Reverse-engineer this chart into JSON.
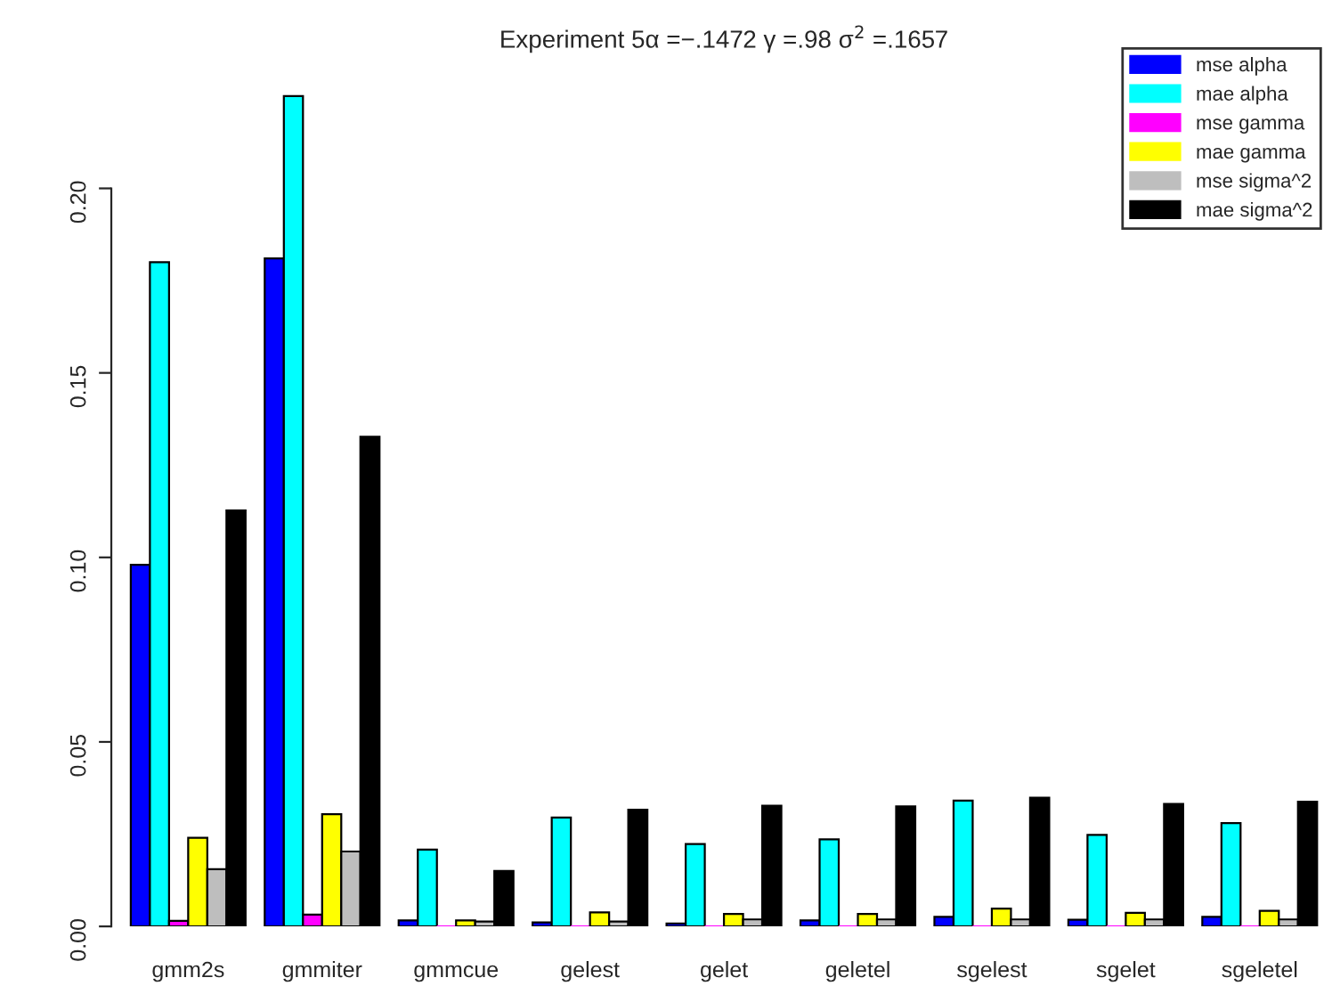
{
  "chart_data": {
    "type": "bar",
    "title": "Experiment 5α =−.1472 γ =.98 σ$^{2}$ =.1657",
    "categories": [
      "gmm2s",
      "gmmiter",
      "gmmcue",
      "gelest",
      "gelet",
      "geletel",
      "sgelest",
      "sgelet",
      "sgeletel"
    ],
    "series": [
      {
        "name": "mse alpha",
        "color": "#0000ff",
        "values": [
          0.098,
          0.181,
          0.0016,
          0.0011,
          0.0008,
          0.0016,
          0.0026,
          0.0018,
          0.0026
        ]
      },
      {
        "name": "mae alpha",
        "color": "#00ffff",
        "values": [
          0.18,
          0.225,
          0.0208,
          0.0295,
          0.0223,
          0.0236,
          0.0341,
          0.0248,
          0.028
        ]
      },
      {
        "name": "mse gamma",
        "color": "#ff00ff",
        "values": [
          0.0015,
          0.0032,
          0,
          0,
          0,
          0,
          0,
          0,
          0
        ]
      },
      {
        "name": "mae gamma",
        "color": "#ffff00",
        "values": [
          0.024,
          0.0304,
          0.0016,
          0.0038,
          0.0034,
          0.0034,
          0.0048,
          0.0037,
          0.0042
        ]
      },
      {
        "name": "mse sigma^2",
        "color": "#bebebe",
        "values": [
          0.0155,
          0.0203,
          0.0013,
          0.0013,
          0.0019,
          0.0019,
          0.0019,
          0.0019,
          0.0019
        ]
      },
      {
        "name": "mae sigma^2",
        "color": "#000000",
        "values": [
          0.1127,
          0.1327,
          0.015,
          0.0316,
          0.0327,
          0.0325,
          0.0349,
          0.0332,
          0.0338
        ]
      }
    ],
    "ylim": [
      0,
      0.226
    ],
    "yticks": [
      {
        "value": 0,
        "label": "0.00"
      },
      {
        "value": 0.05,
        "label": "0.05"
      },
      {
        "value": 0.1,
        "label": "0.10"
      },
      {
        "value": 0.15,
        "label": "0.15"
      },
      {
        "value": 0.2,
        "label": "0.20"
      }
    ],
    "legend": "top right",
    "grid": false
  }
}
